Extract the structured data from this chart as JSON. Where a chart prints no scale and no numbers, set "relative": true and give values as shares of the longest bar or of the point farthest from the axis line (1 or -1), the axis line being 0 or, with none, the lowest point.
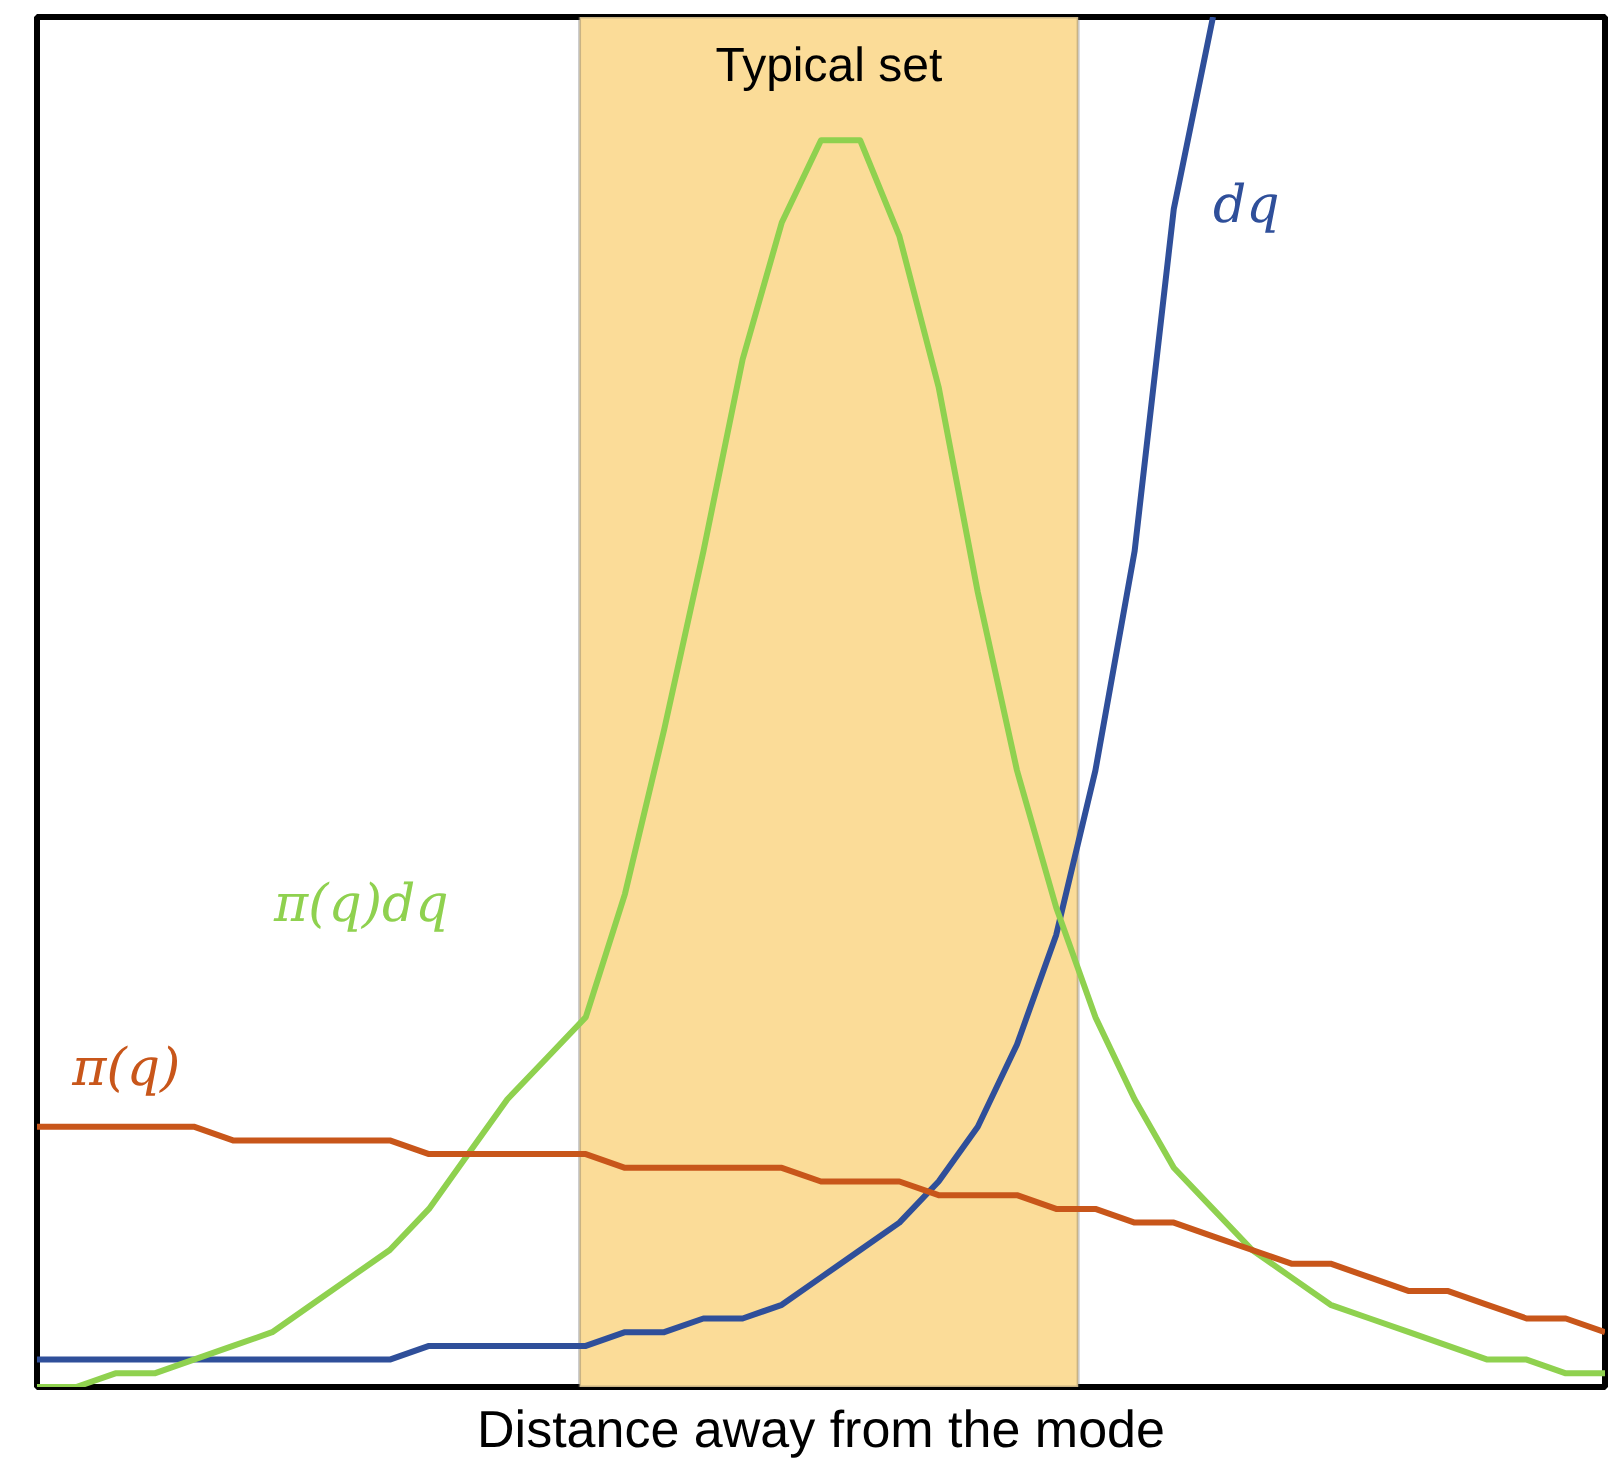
{
  "chart_data": {
    "type": "line",
    "relative": true,
    "xlabel": "Distance away from the mode",
    "categories": [
      null,
      null,
      null,
      null,
      null,
      null,
      null,
      null,
      null,
      null,
      null,
      null,
      null,
      null,
      null,
      null,
      null,
      null,
      null,
      null,
      null,
      null,
      null,
      null,
      null,
      null,
      null,
      null,
      null,
      null,
      null,
      null,
      null,
      null,
      null,
      null,
      null,
      null,
      null,
      null,
      null
    ],
    "series": [
      {
        "name": "dq",
        "color": "#2f4f9a",
        "values": [
          0.02,
          0.02,
          0.02,
          0.02,
          0.02,
          0.02,
          0.02,
          0.02,
          0.02,
          0.02,
          0.03,
          0.03,
          0.03,
          0.03,
          0.03,
          0.04,
          0.04,
          0.05,
          0.05,
          0.06,
          0.08,
          0.1,
          0.12,
          0.15,
          0.19,
          0.25,
          0.33,
          0.45,
          0.61,
          0.86,
          1.0,
          null,
          null,
          null,
          null,
          null,
          null,
          null,
          null,
          null,
          null
        ]
      },
      {
        "name": "π(q)dq",
        "color": "#8fd14f",
        "values": [
          0,
          0.0,
          0.01,
          0.01,
          0.02,
          0.03,
          0.04,
          0.06,
          0.08,
          0.1,
          0.13,
          0.17,
          0.21,
          0.24,
          0.27,
          0.36,
          0.48,
          0.61,
          0.75,
          0.85,
          0.91,
          0.91,
          0.84,
          0.73,
          0.58,
          0.45,
          0.35,
          0.27,
          0.21,
          0.16,
          0.13,
          0.1,
          0.08,
          0.06,
          0.05,
          0.04,
          0.03,
          0.02,
          0.02,
          0.01,
          0.01
        ]
      },
      {
        "name": "π(q)",
        "color": "#c8561a",
        "values": [
          0.19,
          0.19,
          0.19,
          0.19,
          0.19,
          0.18,
          0.18,
          0.18,
          0.18,
          0.18,
          0.17,
          0.17,
          0.17,
          0.17,
          0.17,
          0.16,
          0.16,
          0.16,
          0.16,
          0.16,
          0.15,
          0.15,
          0.15,
          0.14,
          0.14,
          0.14,
          0.13,
          0.13,
          0.12,
          0.12,
          0.11,
          0.1,
          0.09,
          0.09,
          0.08,
          0.07,
          0.07,
          0.06,
          0.05,
          0.05,
          0.04
        ]
      }
    ],
    "annotations": [
      "Typical set"
    ],
    "grid": false,
    "line_style": "solid",
    "marker": "none"
  }
}
